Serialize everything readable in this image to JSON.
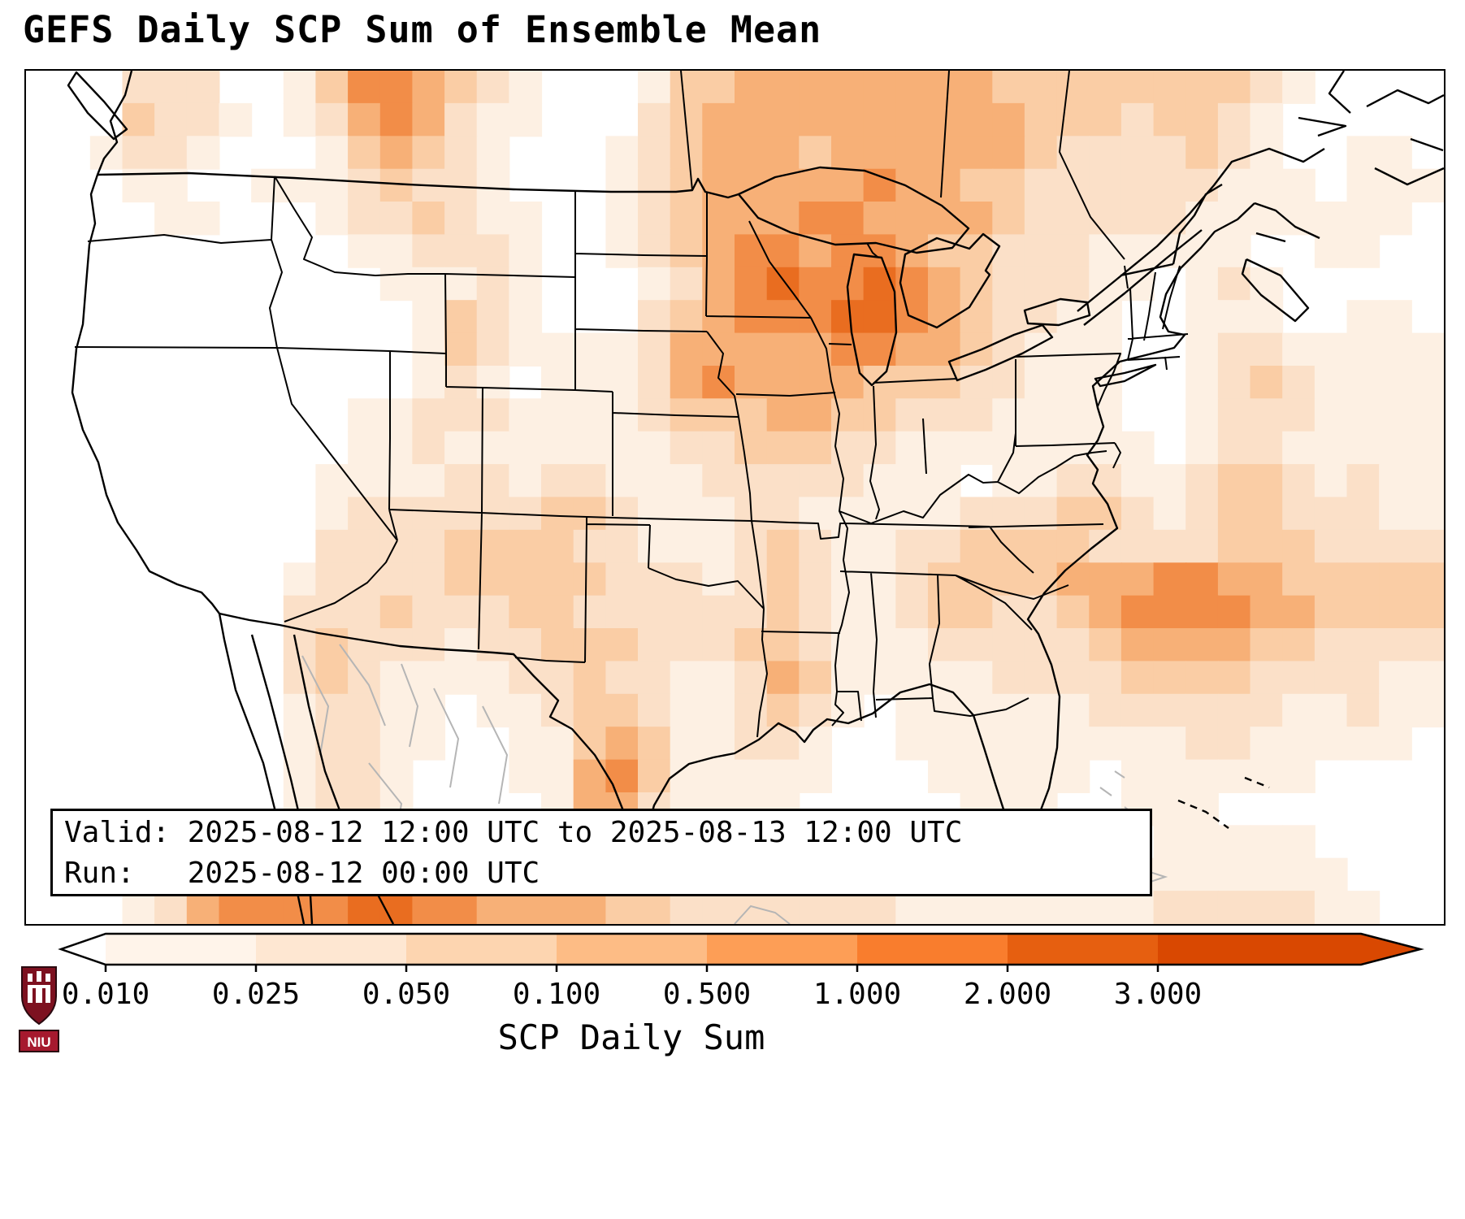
{
  "title": "GEFS Daily SCP Sum of Ensemble Mean",
  "info_box": {
    "line1": "Valid: 2025-08-12 12:00 UTC to 2025-08-13 12:00 UTC",
    "line2": "Run:   2025-08-12 00:00 UTC"
  },
  "colorbar": {
    "label": "SCP Daily Sum",
    "ticks": [
      "0.010",
      "0.025",
      "0.050",
      "0.100",
      "0.500",
      "1.000",
      "2.000",
      "3.000"
    ],
    "segment_colors": [
      "#fff4ea",
      "#fee7d2",
      "#fdd5b0",
      "#fdbc85",
      "#fd9e56",
      "#f97d2d",
      "#e65f10"
    ],
    "under_color": "#ffffff",
    "over_color": "#d94801",
    "outline_color": "#000000"
  },
  "logo": {
    "text": "NIU",
    "shield_color": "#7d1120",
    "banner_color": "#a6192e"
  },
  "map": {
    "land_color": "#ffffff",
    "border_color": "#000000",
    "neighbor_border_color": "#b5b5b5",
    "heat_levels": [
      "none",
      "#fdf0e3",
      "#fbe0c8",
      "#facda5",
      "#f7b077",
      "#f28d48",
      "#e96d20"
    ],
    "grid_cols": 44,
    "grid_rows": 26,
    "heat_grid": [
      "00022200135543210001334444444433333333210000",
      "00032210124542110002344444444443332332100000",
      "00122100013432100012344434444443222232100110",
      "00011001112322100012344444544332222221110111",
      "00001100012232110012344455444432222211111110",
      "00000000001122210012345545543322211111001100",
      "00000000000111210001245655654322211012100000",
      "00000000000013210002345556654322110011100110",
      "00000000000013211112444445544321110012211111",
      "00000000000012101112454444333221110012321111",
      "00000000001122211112333443322211110012221111",
      "00000000001121111111223332211111111012211111",
      "00000000011112212211122222111011221123321211",
      "00000000012222223321112211111222332123322211",
      "00000000022223333221112321122333322223332222",
      "00000000122223333322212321123333444554433333",
      "00000000222322233222222321123322345555443333",
      "00000000232221223332223321112222234444332222",
      "00000000232111122322112431111122223333222211",
      "00000000122110112332112321011111122222211211",
      "00000000122110011343112210011111111122111110",
      "00000000122100011453111110001111101111110000",
      "00000000122100001442111100000111001110000000",
      "00000000112211111232111111000110000111110000",
      "00001122223333322322111111110000001111111000",
      "00012455556655444433222222211111111222221100"
    ]
  }
}
